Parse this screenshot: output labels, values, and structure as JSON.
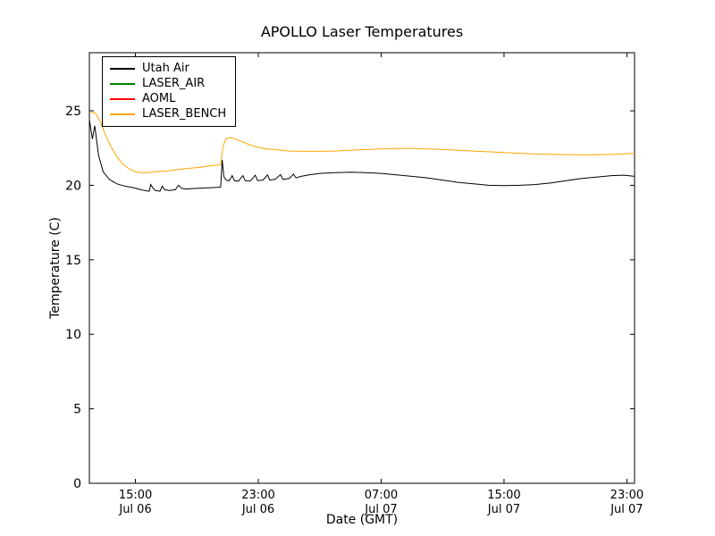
{
  "chart_data": {
    "type": "line",
    "title": "APOLLO Laser Temperatures",
    "xlabel": "Date (GMT)",
    "ylabel": "Temperature (C)",
    "x_unit": "hours since Jul 06 12:00 GMT",
    "xlim": [
      0,
      35.5
    ],
    "ylim": [
      0,
      28.9
    ],
    "grid": false,
    "legend_position": "upper left",
    "yticks": [
      0,
      5,
      10,
      15,
      20,
      25
    ],
    "xticks": [
      {
        "pos": 3,
        "time": "15:00",
        "date": "Jul 06"
      },
      {
        "pos": 11,
        "time": "23:00",
        "date": "Jul 06"
      },
      {
        "pos": 19,
        "time": "07:00",
        "date": "Jul 07"
      },
      {
        "pos": 27,
        "time": "15:00",
        "date": "Jul 07"
      },
      {
        "pos": 35,
        "time": "23:00",
        "date": "Jul 07"
      }
    ],
    "series": [
      {
        "name": "Utah Air",
        "color": "#000000",
        "points": [
          [
            0,
            24.4
          ],
          [
            0.2,
            23.1
          ],
          [
            0.35,
            24.0
          ],
          [
            0.6,
            22.0
          ],
          [
            0.9,
            20.9
          ],
          [
            1.3,
            20.4
          ],
          [
            1.8,
            20.1
          ],
          [
            2.3,
            19.95
          ],
          [
            2.8,
            19.85
          ],
          [
            3.2,
            19.75
          ],
          [
            3.6,
            19.65
          ],
          [
            3.9,
            19.6
          ],
          [
            4.0,
            20.05
          ],
          [
            4.15,
            19.8
          ],
          [
            4.3,
            19.65
          ],
          [
            4.6,
            19.6
          ],
          [
            4.75,
            19.95
          ],
          [
            4.9,
            19.7
          ],
          [
            5.2,
            19.65
          ],
          [
            5.6,
            19.7
          ],
          [
            5.8,
            20.0
          ],
          [
            6.0,
            19.8
          ],
          [
            6.3,
            19.75
          ],
          [
            6.7,
            19.78
          ],
          [
            7.1,
            19.8
          ],
          [
            7.5,
            19.82
          ],
          [
            7.9,
            19.84
          ],
          [
            8.3,
            19.86
          ],
          [
            8.55,
            19.88
          ],
          [
            8.65,
            21.7
          ],
          [
            8.75,
            20.6
          ],
          [
            8.9,
            20.35
          ],
          [
            9.1,
            20.3
          ],
          [
            9.3,
            20.65
          ],
          [
            9.45,
            20.3
          ],
          [
            9.7,
            20.28
          ],
          [
            10.0,
            20.65
          ],
          [
            10.15,
            20.3
          ],
          [
            10.5,
            20.3
          ],
          [
            10.8,
            20.68
          ],
          [
            10.95,
            20.32
          ],
          [
            11.3,
            20.35
          ],
          [
            11.6,
            20.7
          ],
          [
            11.75,
            20.35
          ],
          [
            12.1,
            20.4
          ],
          [
            12.45,
            20.72
          ],
          [
            12.6,
            20.4
          ],
          [
            13.0,
            20.45
          ],
          [
            13.3,
            20.75
          ],
          [
            13.45,
            20.5
          ],
          [
            13.8,
            20.6
          ],
          [
            14.3,
            20.7
          ],
          [
            15,
            20.8
          ],
          [
            16,
            20.85
          ],
          [
            17,
            20.88
          ],
          [
            18,
            20.85
          ],
          [
            19,
            20.8
          ],
          [
            20,
            20.7
          ],
          [
            21,
            20.6
          ],
          [
            22,
            20.5
          ],
          [
            23,
            20.35
          ],
          [
            24,
            20.2
          ],
          [
            25,
            20.1
          ],
          [
            26,
            20.0
          ],
          [
            27,
            19.98
          ],
          [
            28,
            20.0
          ],
          [
            29,
            20.05
          ],
          [
            30,
            20.15
          ],
          [
            31,
            20.3
          ],
          [
            32,
            20.45
          ],
          [
            33,
            20.55
          ],
          [
            34,
            20.65
          ],
          [
            34.8,
            20.68
          ],
          [
            35.5,
            20.6
          ]
        ]
      },
      {
        "name": "LASER_AIR",
        "color": "#008000",
        "points": []
      },
      {
        "name": "AOML",
        "color": "#ff0000",
        "points": []
      },
      {
        "name": "LASER_BENCH",
        "color": "#ffa500",
        "points": [
          [
            0,
            24.9
          ],
          [
            0.4,
            24.85
          ],
          [
            0.7,
            24.3
          ],
          [
            1.0,
            23.5
          ],
          [
            1.4,
            22.6
          ],
          [
            1.8,
            21.9
          ],
          [
            2.2,
            21.4
          ],
          [
            2.6,
            21.1
          ],
          [
            3.0,
            20.9
          ],
          [
            3.4,
            20.85
          ],
          [
            3.8,
            20.85
          ],
          [
            4.2,
            20.9
          ],
          [
            4.8,
            20.95
          ],
          [
            5.4,
            21.0
          ],
          [
            6.0,
            21.1
          ],
          [
            6.6,
            21.15
          ],
          [
            7.2,
            21.2
          ],
          [
            7.8,
            21.3
          ],
          [
            8.3,
            21.35
          ],
          [
            8.55,
            21.4
          ],
          [
            8.7,
            22.6
          ],
          [
            8.9,
            23.15
          ],
          [
            9.2,
            23.2
          ],
          [
            9.5,
            23.1
          ],
          [
            10,
            22.9
          ],
          [
            10.5,
            22.7
          ],
          [
            11,
            22.55
          ],
          [
            11.5,
            22.45
          ],
          [
            12,
            22.4
          ],
          [
            13,
            22.3
          ],
          [
            14,
            22.28
          ],
          [
            15,
            22.28
          ],
          [
            16,
            22.3
          ],
          [
            17,
            22.35
          ],
          [
            18,
            22.4
          ],
          [
            19,
            22.45
          ],
          [
            20,
            22.48
          ],
          [
            21,
            22.48
          ],
          [
            22,
            22.45
          ],
          [
            23,
            22.4
          ],
          [
            24,
            22.35
          ],
          [
            25,
            22.3
          ],
          [
            26,
            22.25
          ],
          [
            27,
            22.2
          ],
          [
            28,
            22.15
          ],
          [
            29,
            22.1
          ],
          [
            30,
            22.08
          ],
          [
            31,
            22.06
          ],
          [
            32,
            22.05
          ],
          [
            33,
            22.05
          ],
          [
            34,
            22.08
          ],
          [
            35.5,
            22.15
          ]
        ]
      }
    ]
  }
}
